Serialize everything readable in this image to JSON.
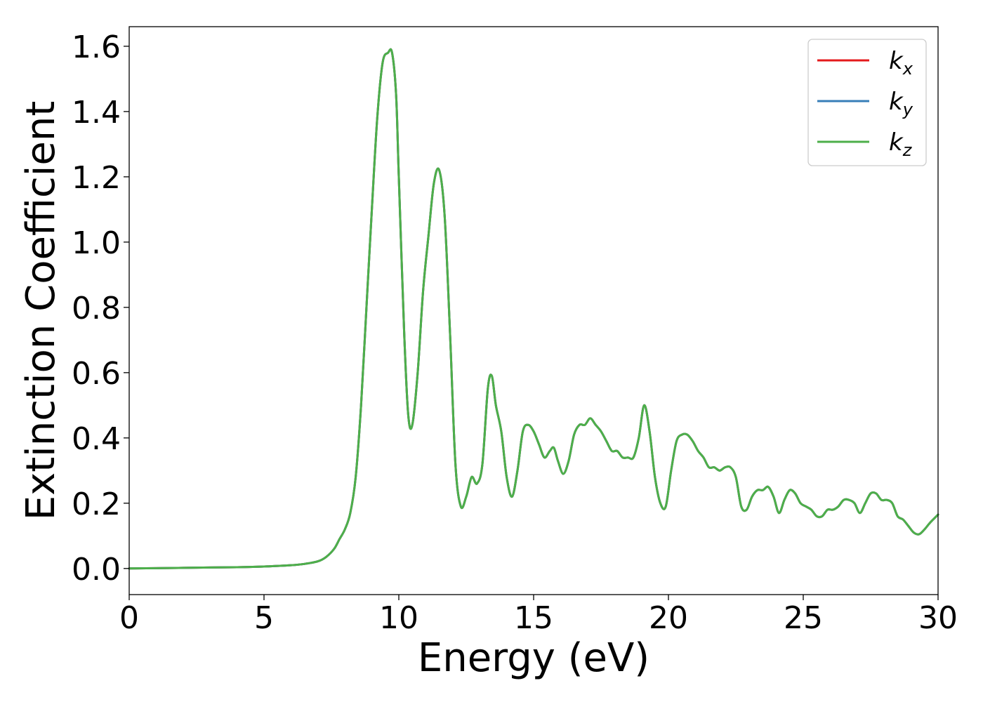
{
  "chart_data": {
    "type": "line",
    "title": "",
    "xlabel": "Energy (eV)",
    "ylabel": "Extinction Coefficient",
    "xlim": [
      0,
      30
    ],
    "ylim": [
      -0.08,
      1.66
    ],
    "xticks": [
      0,
      5,
      10,
      15,
      20,
      25,
      30
    ],
    "xtick_labels": [
      "0",
      "5",
      "10",
      "15",
      "20",
      "25",
      "30"
    ],
    "yticks": [
      0.0,
      0.2,
      0.4,
      0.6,
      0.8,
      1.0,
      1.2,
      1.4,
      1.6
    ],
    "ytick_labels": [
      "0.0",
      "0.2",
      "0.4",
      "0.6",
      "0.8",
      "1.0",
      "1.2",
      "1.4",
      "1.6"
    ],
    "grid": false,
    "legend_position": "top-right",
    "x": [
      0,
      1,
      2,
      3,
      4,
      5,
      6,
      6.5,
      7,
      7.3,
      7.6,
      7.8,
      8.0,
      8.2,
      8.4,
      8.6,
      8.8,
      9.0,
      9.2,
      9.4,
      9.6,
      9.75,
      9.9,
      10.0,
      10.2,
      10.35,
      10.5,
      10.7,
      10.9,
      11.1,
      11.3,
      11.5,
      11.7,
      11.9,
      12.1,
      12.3,
      12.5,
      12.7,
      12.9,
      13.1,
      13.3,
      13.45,
      13.6,
      13.8,
      14.0,
      14.2,
      14.4,
      14.6,
      14.8,
      15.0,
      15.2,
      15.4,
      15.6,
      15.75,
      15.9,
      16.1,
      16.3,
      16.5,
      16.7,
      16.9,
      17.1,
      17.3,
      17.5,
      17.7,
      17.9,
      18.1,
      18.3,
      18.5,
      18.7,
      18.9,
      19.1,
      19.3,
      19.5,
      19.7,
      19.9,
      20.1,
      20.3,
      20.5,
      20.7,
      20.9,
      21.1,
      21.3,
      21.5,
      21.7,
      21.9,
      22.1,
      22.3,
      22.5,
      22.7,
      22.9,
      23.1,
      23.3,
      23.5,
      23.7,
      23.9,
      24.1,
      24.3,
      24.5,
      24.7,
      24.9,
      25.1,
      25.3,
      25.5,
      25.7,
      25.9,
      26.1,
      26.3,
      26.5,
      26.7,
      26.9,
      27.1,
      27.3,
      27.5,
      27.7,
      27.9,
      28.1,
      28.3,
      28.5,
      28.7,
      28.9,
      29.1,
      29.3,
      29.5,
      29.7,
      30.0
    ],
    "series": [
      {
        "name": "k_x",
        "color": "#e41a1c",
        "values": [
          0.0,
          0.001,
          0.002,
          0.003,
          0.004,
          0.006,
          0.01,
          0.014,
          0.022,
          0.035,
          0.06,
          0.09,
          0.12,
          0.17,
          0.28,
          0.5,
          0.8,
          1.1,
          1.38,
          1.55,
          1.58,
          1.58,
          1.45,
          1.2,
          0.72,
          0.47,
          0.44,
          0.6,
          0.85,
          1.02,
          1.18,
          1.22,
          1.08,
          0.72,
          0.32,
          0.19,
          0.22,
          0.28,
          0.26,
          0.32,
          0.55,
          0.59,
          0.5,
          0.42,
          0.28,
          0.22,
          0.3,
          0.42,
          0.44,
          0.42,
          0.38,
          0.34,
          0.36,
          0.37,
          0.33,
          0.29,
          0.33,
          0.41,
          0.44,
          0.44,
          0.46,
          0.44,
          0.42,
          0.39,
          0.36,
          0.36,
          0.34,
          0.34,
          0.34,
          0.4,
          0.5,
          0.42,
          0.28,
          0.2,
          0.19,
          0.3,
          0.39,
          0.41,
          0.41,
          0.39,
          0.36,
          0.34,
          0.31,
          0.31,
          0.3,
          0.31,
          0.31,
          0.28,
          0.19,
          0.18,
          0.22,
          0.24,
          0.24,
          0.25,
          0.22,
          0.17,
          0.21,
          0.24,
          0.23,
          0.2,
          0.19,
          0.18,
          0.16,
          0.16,
          0.18,
          0.18,
          0.19,
          0.21,
          0.21,
          0.2,
          0.17,
          0.2,
          0.23,
          0.23,
          0.21,
          0.21,
          0.2,
          0.16,
          0.15,
          0.13,
          0.11,
          0.105,
          0.12,
          0.14,
          0.165
        ]
      },
      {
        "name": "k_y",
        "color": "#377eb8",
        "values": [
          0.0,
          0.001,
          0.002,
          0.003,
          0.004,
          0.006,
          0.01,
          0.014,
          0.022,
          0.035,
          0.06,
          0.09,
          0.12,
          0.17,
          0.28,
          0.5,
          0.8,
          1.1,
          1.38,
          1.55,
          1.58,
          1.58,
          1.45,
          1.2,
          0.72,
          0.47,
          0.44,
          0.6,
          0.85,
          1.02,
          1.18,
          1.22,
          1.08,
          0.72,
          0.32,
          0.19,
          0.22,
          0.28,
          0.26,
          0.32,
          0.55,
          0.59,
          0.5,
          0.42,
          0.28,
          0.22,
          0.3,
          0.42,
          0.44,
          0.42,
          0.38,
          0.34,
          0.36,
          0.37,
          0.33,
          0.29,
          0.33,
          0.41,
          0.44,
          0.44,
          0.46,
          0.44,
          0.42,
          0.39,
          0.36,
          0.36,
          0.34,
          0.34,
          0.34,
          0.4,
          0.5,
          0.42,
          0.28,
          0.2,
          0.19,
          0.3,
          0.39,
          0.41,
          0.41,
          0.39,
          0.36,
          0.34,
          0.31,
          0.31,
          0.3,
          0.31,
          0.31,
          0.28,
          0.19,
          0.18,
          0.22,
          0.24,
          0.24,
          0.25,
          0.22,
          0.17,
          0.21,
          0.24,
          0.23,
          0.2,
          0.19,
          0.18,
          0.16,
          0.16,
          0.18,
          0.18,
          0.19,
          0.21,
          0.21,
          0.2,
          0.17,
          0.2,
          0.23,
          0.23,
          0.21,
          0.21,
          0.2,
          0.16,
          0.15,
          0.13,
          0.11,
          0.105,
          0.12,
          0.14,
          0.165
        ]
      },
      {
        "name": "k_z",
        "color": "#4daf4a",
        "values": [
          0.0,
          0.001,
          0.002,
          0.003,
          0.004,
          0.006,
          0.01,
          0.014,
          0.022,
          0.035,
          0.06,
          0.09,
          0.12,
          0.17,
          0.28,
          0.5,
          0.8,
          1.1,
          1.38,
          1.55,
          1.58,
          1.58,
          1.45,
          1.2,
          0.72,
          0.47,
          0.44,
          0.6,
          0.85,
          1.02,
          1.18,
          1.22,
          1.08,
          0.72,
          0.32,
          0.19,
          0.22,
          0.28,
          0.26,
          0.32,
          0.55,
          0.59,
          0.5,
          0.42,
          0.28,
          0.22,
          0.3,
          0.42,
          0.44,
          0.42,
          0.38,
          0.34,
          0.36,
          0.37,
          0.33,
          0.29,
          0.33,
          0.41,
          0.44,
          0.44,
          0.46,
          0.44,
          0.42,
          0.39,
          0.36,
          0.36,
          0.34,
          0.34,
          0.34,
          0.4,
          0.5,
          0.42,
          0.28,
          0.2,
          0.19,
          0.3,
          0.39,
          0.41,
          0.41,
          0.39,
          0.36,
          0.34,
          0.31,
          0.31,
          0.3,
          0.31,
          0.31,
          0.28,
          0.19,
          0.18,
          0.22,
          0.24,
          0.24,
          0.25,
          0.22,
          0.17,
          0.21,
          0.24,
          0.23,
          0.2,
          0.19,
          0.18,
          0.16,
          0.16,
          0.18,
          0.18,
          0.19,
          0.21,
          0.21,
          0.2,
          0.17,
          0.2,
          0.23,
          0.23,
          0.21,
          0.21,
          0.2,
          0.16,
          0.15,
          0.13,
          0.11,
          0.105,
          0.12,
          0.14,
          0.165
        ]
      }
    ],
    "legend": [
      {
        "main": "k",
        "sub": "x",
        "color": "#e41a1c"
      },
      {
        "main": "k",
        "sub": "y",
        "color": "#377eb8"
      },
      {
        "main": "k",
        "sub": "z",
        "color": "#4daf4a"
      }
    ]
  }
}
